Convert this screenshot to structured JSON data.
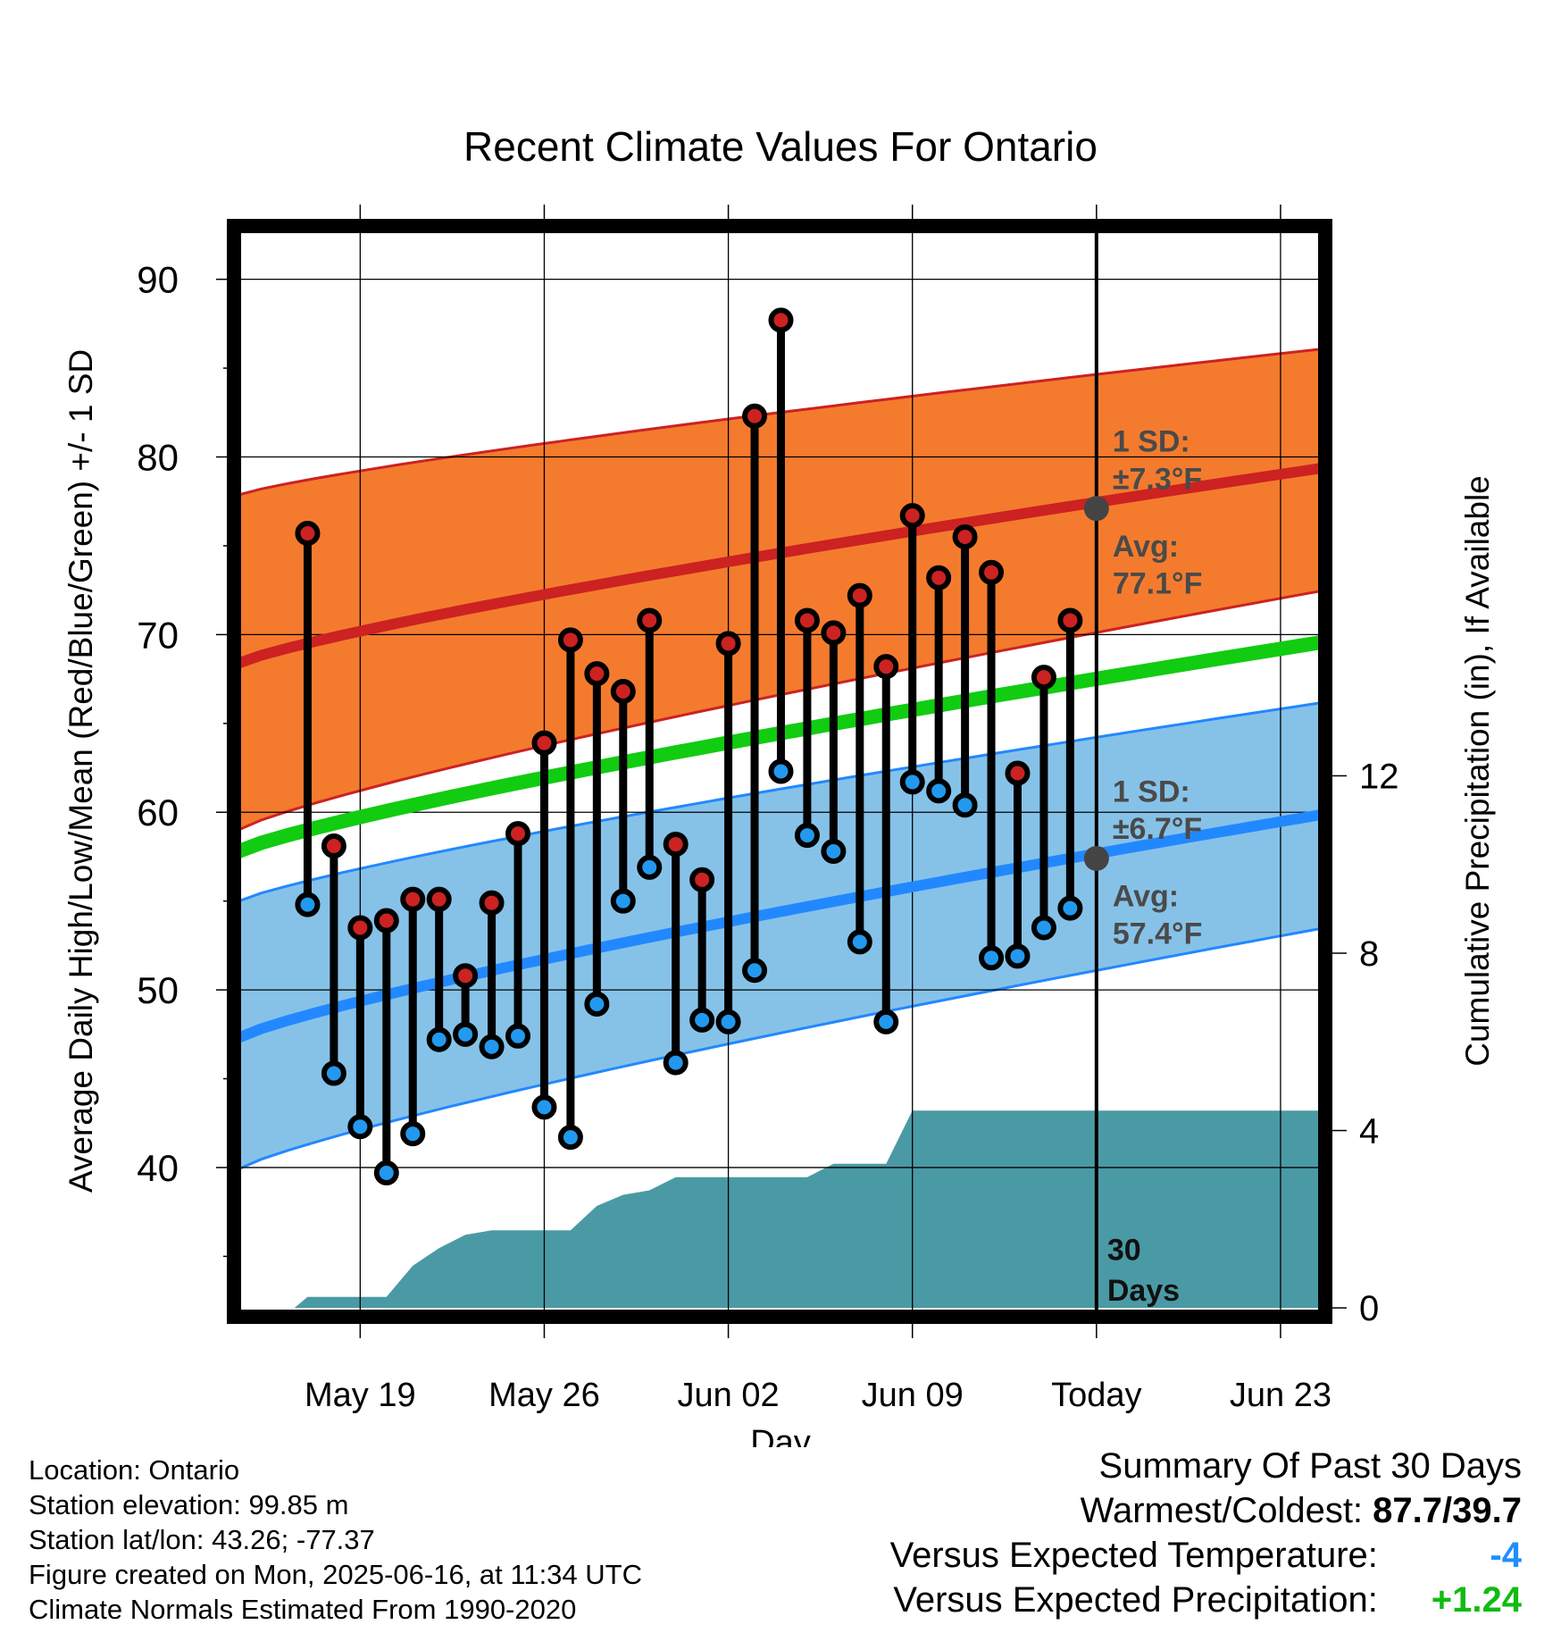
{
  "chart_data": {
    "type": "line",
    "title": "Recent Climate Values For Ontario",
    "xlabel": "Day",
    "ylabel": "Average Daily High/Low/Mean (Red/Blue/Green) +/- 1 SD",
    "y2label": "Cumulative Precipitation (in), If Available",
    "xlim": [
      -4.8,
      36.7
    ],
    "ylim": [
      31.6,
      93.0
    ],
    "y2lim": [
      -0.2,
      24.4
    ],
    "x_tick_positions": [
      0,
      7,
      14,
      21,
      28,
      35
    ],
    "x_tick_labels": [
      "May 19",
      "May 26",
      "Jun 02",
      "Jun 09",
      "Today",
      "Jun 23"
    ],
    "y_ticks": [
      40,
      50,
      60,
      70,
      80,
      90
    ],
    "y2_ticks": [
      0,
      4,
      8,
      12
    ],
    "today_x": 28,
    "today_label_line1": "30",
    "today_label_line2": "Days",
    "grid": true,
    "series": [
      {
        "name": "High",
        "color": "#cc2222",
        "x": [
          -2,
          -1,
          0,
          1,
          2,
          3,
          4,
          5,
          6,
          7,
          8,
          9,
          10,
          11,
          12,
          13,
          14,
          15,
          16,
          17,
          18,
          19,
          20,
          21,
          22,
          23,
          24,
          25,
          26,
          27
        ],
        "values": [
          75.7,
          58.1,
          53.5,
          53.9,
          55.1,
          55.1,
          50.8,
          54.9,
          58.8,
          63.9,
          69.7,
          67.8,
          66.8,
          70.8,
          58.2,
          56.2,
          69.5,
          82.3,
          87.7,
          70.8,
          70.1,
          72.2,
          68.2,
          76.7,
          73.2,
          75.5,
          73.5,
          62.2,
          67.6,
          70.8
        ]
      },
      {
        "name": "Low",
        "color": "#2299ee",
        "x": [
          -2,
          -1,
          0,
          1,
          2,
          3,
          4,
          5,
          6,
          7,
          8,
          9,
          10,
          11,
          12,
          13,
          14,
          15,
          16,
          17,
          18,
          19,
          20,
          21,
          22,
          23,
          24,
          25,
          26,
          27
        ],
        "values": [
          54.8,
          45.3,
          42.3,
          39.7,
          41.9,
          47.2,
          47.5,
          46.8,
          47.4,
          43.4,
          41.7,
          49.2,
          55.0,
          56.9,
          45.9,
          48.3,
          48.2,
          51.1,
          62.3,
          58.7,
          57.8,
          52.7,
          48.2,
          61.7,
          61.2,
          60.4,
          51.8,
          51.9,
          53.5,
          54.6
        ]
      }
    ],
    "normals": {
      "x": [
        -4.8,
        36.7
      ],
      "high_avg": [
        68.3,
        79.4
      ],
      "high_upper": [
        77.8,
        86.1
      ],
      "high_lower": [
        58.9,
        72.5
      ],
      "mean_avg": [
        57.7,
        69.6
      ],
      "low_avg": [
        47.2,
        59.9
      ],
      "low_upper": [
        54.9,
        66.2
      ],
      "low_lower": [
        39.8,
        53.5
      ],
      "high_color": "#f47b2e",
      "high_line_color": "#cc2222",
      "mean_color": "#11cc11",
      "low_color": "#86c2e8",
      "low_line_color": "#2288ff"
    },
    "today_markers": {
      "high_avg": 77.1,
      "low_avg": 57.4
    },
    "annotations": {
      "high_sd_line1": "1 SD:",
      "high_sd_line2": "±7.3°F",
      "high_avg_line1": "Avg:",
      "high_avg_line2": "77.1°F",
      "low_sd_line1": "1 SD:",
      "low_sd_line2": "±6.7°F",
      "low_avg_line1": "Avg:",
      "low_avg_line2": "57.4°F"
    },
    "precipitation": {
      "color": "#4a9aa5",
      "x": [
        -2.5,
        -2,
        -1,
        0,
        1,
        2,
        3,
        4,
        5,
        6,
        7,
        8,
        9,
        10,
        11,
        12,
        13,
        14,
        15,
        16,
        17,
        18,
        19,
        20,
        21,
        22,
        23,
        24,
        25,
        26,
        27,
        28,
        36.7
      ],
      "values": [
        0.0,
        0.25,
        0.25,
        0.25,
        0.25,
        0.95,
        1.35,
        1.65,
        1.75,
        1.75,
        1.75,
        1.75,
        2.3,
        2.55,
        2.65,
        2.95,
        2.95,
        2.95,
        2.95,
        2.95,
        2.95,
        3.25,
        3.25,
        3.25,
        4.45,
        4.45,
        4.45,
        4.45,
        4.45,
        4.45,
        4.45,
        4.45,
        4.45
      ]
    }
  },
  "info": {
    "location": "Location: Ontario",
    "elevation": "Station elevation: 99.85 m",
    "latlon": "Station lat/lon: 43.26; -77.37",
    "created": "Figure created on Mon, 2025-06-16, at 11:34 UTC",
    "normals": "Climate Normals Estimated From 1990-2020"
  },
  "summary": {
    "title": "Summary Of Past 30 Days",
    "warm_cold_label": "Warmest/Coldest:",
    "warm_cold_value": "87.7/39.7",
    "temp_label": "Versus Expected Temperature:",
    "temp_value": "-4",
    "temp_color": "#1e90ff",
    "precip_label": "Versus Expected Precipitation:",
    "precip_value": "+1.24",
    "precip_color": "#11bb11"
  }
}
